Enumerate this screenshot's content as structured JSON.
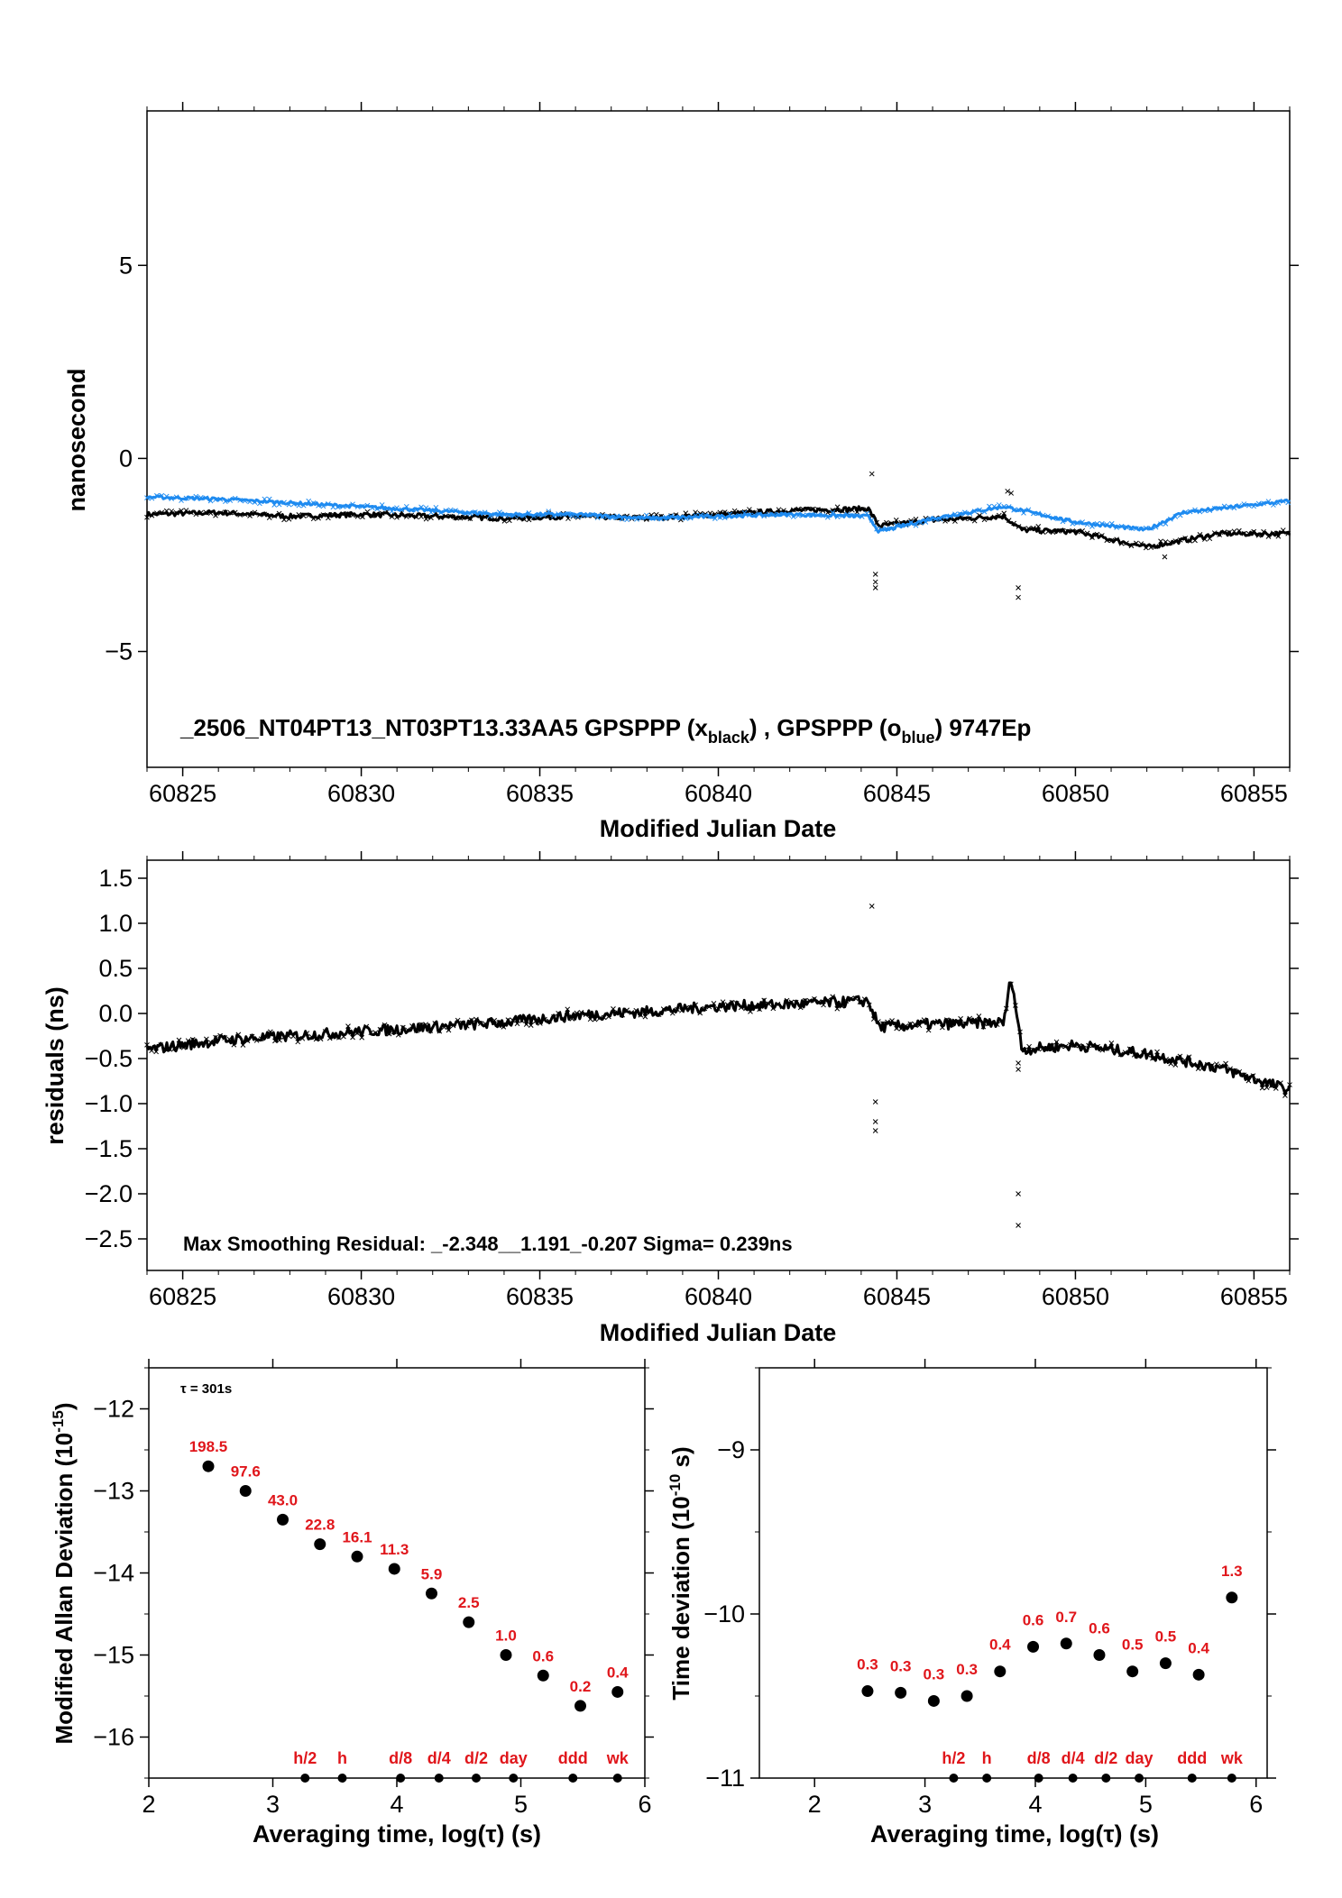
{
  "colors": {
    "black_series": "#000000",
    "blue_series": "#1f8bf0",
    "red_labels": "#e0161b"
  },
  "chart_data": [
    {
      "type": "scatter",
      "xlabel": "Modified Julian Date",
      "ylabel": "nanosecond",
      "xlim": [
        60824,
        60856
      ],
      "ylim": [
        -8,
        9
      ],
      "xticks": [
        60825,
        60830,
        60835,
        60840,
        60845,
        60850,
        60855
      ],
      "yticks": [
        -5,
        0,
        5
      ],
      "ytick_labels": [
        "−5",
        "0",
        "5"
      ],
      "annotation": {
        "prefix": "_2506_NT04PT13_NT03PT13.33AA5     GPSPPP (x",
        "sub1": "black",
        "middle": ") ,  GPSPPP (o",
        "sub2": "blue",
        "suffix": ")  9747Ep"
      },
      "series": [
        {
          "name": "GPSPPP (x black)",
          "color": "#000000",
          "x": [
            60824,
            60826,
            60828,
            60830,
            60832,
            60834,
            60836,
            60838,
            60840,
            60842,
            60844.2,
            60844.5,
            60846,
            60848,
            60848.5,
            60850,
            60852,
            60854,
            60856
          ],
          "y": [
            -1.45,
            -1.4,
            -1.5,
            -1.45,
            -1.5,
            -1.55,
            -1.5,
            -1.55,
            -1.45,
            -1.35,
            -1.3,
            -1.75,
            -1.6,
            -1.5,
            -1.85,
            -1.9,
            -2.3,
            -1.95,
            -1.95
          ]
        },
        {
          "name": "GPSPPP (o blue)",
          "color": "#1f8bf0",
          "x": [
            60824,
            60826,
            60828,
            60830,
            60832,
            60834,
            60836,
            60838,
            60840,
            60842,
            60844.2,
            60844.5,
            60846,
            60848,
            60848.5,
            60850,
            60852,
            60853,
            60854,
            60856
          ],
          "y": [
            -1.0,
            -1.05,
            -1.15,
            -1.25,
            -1.35,
            -1.45,
            -1.45,
            -1.55,
            -1.5,
            -1.45,
            -1.5,
            -1.9,
            -1.55,
            -1.25,
            -1.35,
            -1.65,
            -1.85,
            -1.4,
            -1.3,
            -1.1
          ]
        }
      ],
      "outliers": [
        {
          "x": 60844.3,
          "y": -0.4
        },
        {
          "x": 60844.4,
          "y": -3.0
        },
        {
          "x": 60844.4,
          "y": -3.2
        },
        {
          "x": 60844.4,
          "y": -3.35
        },
        {
          "x": 60848.4,
          "y": -3.35
        },
        {
          "x": 60848.4,
          "y": -3.6
        },
        {
          "x": 60848.1,
          "y": -0.85
        },
        {
          "x": 60848.2,
          "y": -0.9
        },
        {
          "x": 60852.5,
          "y": -2.55
        }
      ]
    },
    {
      "type": "scatter",
      "xlabel": "Modified Julian Date",
      "ylabel": "residuals (ns)",
      "xlim": [
        60824,
        60856
      ],
      "ylim": [
        -2.85,
        1.7
      ],
      "xticks": [
        60825,
        60830,
        60835,
        60840,
        60845,
        60850,
        60855
      ],
      "yticks": [
        -2.5,
        -2.0,
        -1.5,
        -1.0,
        -0.5,
        0.0,
        0.5,
        1.0,
        1.5
      ],
      "ytick_labels": [
        "−2.5",
        "−2.0",
        "−1.5",
        "−1.0",
        "−0.5",
        "0.0",
        "0.5",
        "1.0",
        "1.5"
      ],
      "annotation": "Max Smoothing Residual: _-2.348__1.191_-0.207  Sigma= 0.239ns",
      "series": [
        {
          "name": "",
          "color": "#000000",
          "x": [
            60824,
            60826,
            60828,
            60830,
            60832,
            60834,
            60836,
            60838,
            60840,
            60842,
            60844.2,
            60844.5,
            60846,
            60848,
            60848.2,
            60848.5,
            60850,
            60852,
            60854,
            60856
          ],
          "y": [
            -0.4,
            -0.3,
            -0.25,
            -0.2,
            -0.15,
            -0.1,
            -0.02,
            0.02,
            0.08,
            0.1,
            0.14,
            -0.15,
            -0.12,
            -0.1,
            0.42,
            -0.4,
            -0.35,
            -0.45,
            -0.6,
            -0.85
          ]
        }
      ],
      "outliers": [
        {
          "x": 60844.3,
          "y": 1.19
        },
        {
          "x": 60844.4,
          "y": -0.98
        },
        {
          "x": 60844.4,
          "y": -1.2
        },
        {
          "x": 60844.4,
          "y": -1.3
        },
        {
          "x": 60848.4,
          "y": -0.55
        },
        {
          "x": 60848.4,
          "y": -0.62
        },
        {
          "x": 60848.4,
          "y": -2.0
        },
        {
          "x": 60848.4,
          "y": -2.35
        }
      ]
    },
    {
      "type": "scatter",
      "xlabel": "Averaging time, log(τ) (s)",
      "ylabel_main": "Modified Allan Deviation (10",
      "ylabel_sup": "-15",
      "ylabel_end": ")",
      "xlim": [
        2,
        6
      ],
      "ylim": [
        -16.5,
        -11.5
      ],
      "xticks": [
        2,
        3,
        4,
        5,
        6
      ],
      "yticks": [
        -16,
        -15,
        -14,
        -13,
        -12
      ],
      "ytick_labels": [
        "−16",
        "−15",
        "−14",
        "−13",
        "−12"
      ],
      "tau_note": "τ = 301s",
      "x": [
        2.48,
        2.78,
        3.08,
        3.38,
        3.68,
        3.98,
        4.28,
        4.58,
        4.88,
        5.18,
        5.48,
        5.78
      ],
      "y": [
        -12.7,
        -13.0,
        -13.35,
        -13.65,
        -13.8,
        -13.95,
        -14.25,
        -14.6,
        -15.0,
        -15.25,
        -15.62,
        -15.45
      ],
      "value_labels": [
        "198.5",
        "97.6",
        "43.0",
        "22.8",
        "16.1",
        "11.3",
        "5.9",
        "2.5",
        "1.0",
        "0.6",
        "0.2",
        "0.4"
      ],
      "interval_labels": [
        {
          "x": 3.26,
          "label": "h/2"
        },
        {
          "x": 3.56,
          "label": "h"
        },
        {
          "x": 4.03,
          "label": "d/8"
        },
        {
          "x": 4.34,
          "label": "d/4"
        },
        {
          "x": 4.64,
          "label": "d/2"
        },
        {
          "x": 4.94,
          "label": "day"
        },
        {
          "x": 5.42,
          "label": "ddd"
        },
        {
          "x": 5.78,
          "label": "wk"
        }
      ]
    },
    {
      "type": "scatter",
      "xlabel": "Averaging time, log(τ) (s)",
      "ylabel_main": "Time deviation (10",
      "ylabel_sup": "-10",
      "ylabel_end": " s)",
      "xlim": [
        1.5,
        6.1
      ],
      "ylim": [
        -11,
        -8.5
      ],
      "xticks": [
        2,
        3,
        4,
        5,
        6
      ],
      "yticks": [
        -11,
        -10,
        -9
      ],
      "ytick_labels": [
        "−11",
        "−10",
        "−9"
      ],
      "x": [
        2.48,
        2.78,
        3.08,
        3.38,
        3.68,
        3.98,
        4.28,
        4.58,
        4.88,
        5.18,
        5.48,
        5.78
      ],
      "y": [
        -10.47,
        -10.48,
        -10.53,
        -10.5,
        -10.35,
        -10.2,
        -10.18,
        -10.25,
        -10.35,
        -10.3,
        -10.37,
        -9.9
      ],
      "value_labels": [
        "0.3",
        "0.3",
        "0.3",
        "0.3",
        "0.4",
        "0.6",
        "0.7",
        "0.6",
        "0.5",
        "0.5",
        "0.4",
        "1.3"
      ],
      "interval_labels": [
        {
          "x": 3.26,
          "label": "h/2"
        },
        {
          "x": 3.56,
          "label": "h"
        },
        {
          "x": 4.03,
          "label": "d/8"
        },
        {
          "x": 4.34,
          "label": "d/4"
        },
        {
          "x": 4.64,
          "label": "d/2"
        },
        {
          "x": 4.94,
          "label": "day"
        },
        {
          "x": 5.42,
          "label": "ddd"
        },
        {
          "x": 5.78,
          "label": "wk"
        }
      ]
    }
  ]
}
